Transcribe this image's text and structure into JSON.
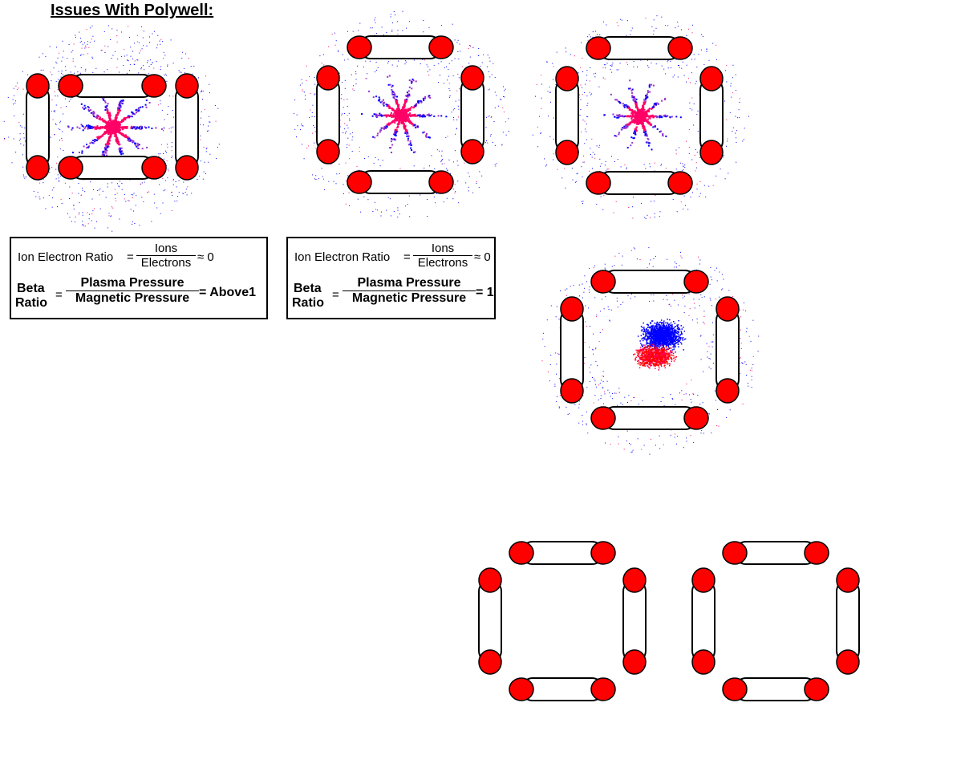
{
  "title": "Issues With Polywell:",
  "equations": [
    {
      "ier_label": "Ion Electron Ratio",
      "ier_num": "Ions",
      "ier_den": "Electrons",
      "ier_value": "≈ 0",
      "beta_word": "Beta",
      "ratio_word": "Ratio",
      "beta_num": "Plasma Pressure",
      "beta_den": "Magnetic Pressure",
      "beta_value": "= Above1"
    },
    {
      "ier_label": "Ion Electron Ratio",
      "ier_num": "Ions",
      "ier_den": "Electrons",
      "ier_value": "≈ 0",
      "beta_word": "Beta",
      "ratio_word": "Ratio",
      "beta_num": "Plasma Pressure",
      "beta_den": "Magnetic Pressure",
      "beta_value": "= 1"
    }
  ],
  "colors": {
    "coil_fill": "#ff0000",
    "outline": "#000000",
    "electron": "#0000ff",
    "ion": "#ff0066",
    "mix": "#9933cc"
  },
  "diagrams": [
    {
      "id": "polywell-cell-1",
      "plasma": "star",
      "spread": 1.0
    },
    {
      "id": "polywell-cell-2",
      "plasma": "star",
      "spread": 0.85
    },
    {
      "id": "polywell-cell-3",
      "plasma": "star",
      "spread": 0.75
    },
    {
      "id": "polywell-cell-4",
      "plasma": "blob",
      "spread": 0.8
    },
    {
      "id": "polywell-cell-5",
      "plasma": "none",
      "spread": 0
    },
    {
      "id": "polywell-cell-6",
      "plasma": "none",
      "spread": 0
    }
  ]
}
